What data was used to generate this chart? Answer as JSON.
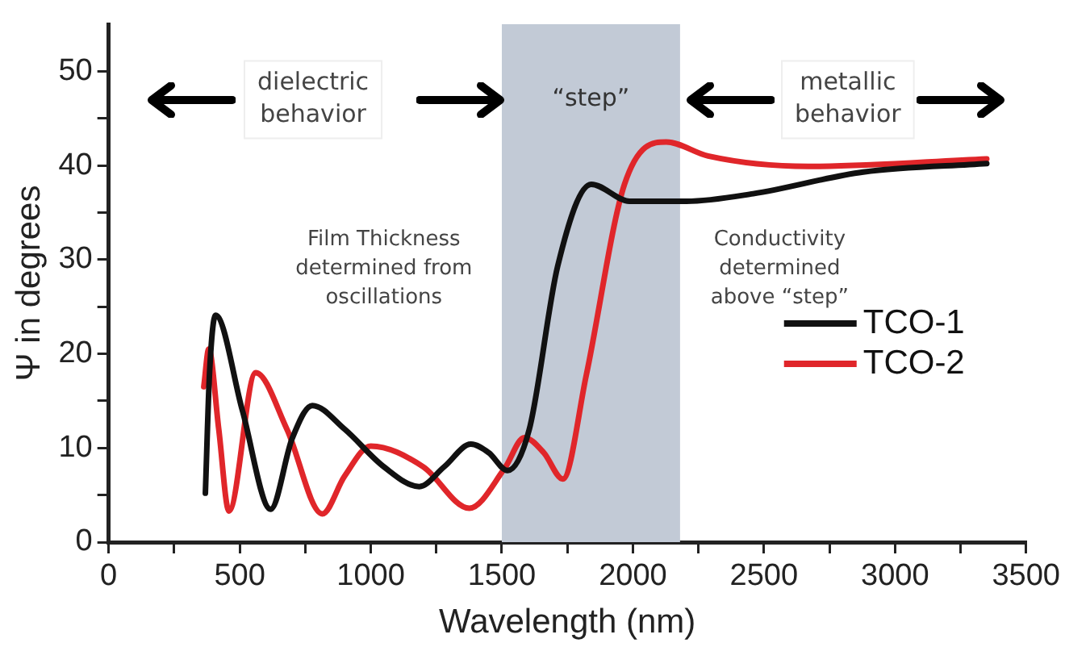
{
  "chart_data": {
    "type": "line",
    "xlabel": "Wavelength (nm)",
    "ylabel": "Ψ in degrees",
    "xlim": [
      0,
      3500
    ],
    "ylim": [
      0,
      55
    ],
    "xticks": [
      0,
      {
        "value": 250,
        "label": null
      },
      500,
      {
        "value": 750,
        "label": null
      },
      1000,
      {
        "value": 1250,
        "label": null
      },
      1500,
      {
        "value": 1750,
        "label": null
      },
      2000,
      {
        "value": 2250,
        "label": null
      },
      2500,
      {
        "value": 2750,
        "label": null
      },
      3000,
      {
        "value": 3250,
        "label": null
      },
      3500
    ],
    "yticks": [
      0,
      {
        "value": 5,
        "label": null
      },
      10,
      {
        "value": 15,
        "label": null
      },
      20,
      {
        "value": 25,
        "label": null
      },
      30,
      {
        "value": 35,
        "label": null
      },
      40,
      {
        "value": 45,
        "label": null
      },
      50
    ],
    "series": [
      {
        "name": "TCO-1",
        "color": "#111111",
        "x": [
          369,
          385,
          408,
          510,
          618,
          700,
          777,
          900,
          1050,
          1185,
          1280,
          1382,
          1450,
          1522,
          1605,
          1713,
          1841,
          1987,
          2204,
          2459,
          2879,
          3350
        ],
        "values": [
          5.2,
          18,
          24.1,
          14,
          3.5,
          11,
          14.5,
          12,
          8,
          5.9,
          8,
          10.4,
          9.5,
          7.6,
          12,
          29.3,
          38,
          36.2,
          36.2,
          37,
          39.3,
          40.2
        ]
      },
      {
        "name": "TCO-2",
        "color": "#e0262a",
        "x": [
          363,
          382,
          420,
          459,
          561,
          680,
          815,
          900,
          1000,
          1200,
          1376,
          1510,
          1586,
          1660,
          1733,
          1822,
          1968,
          2127,
          2287,
          2669,
          3350
        ],
        "values": [
          16.5,
          20.5,
          12,
          3.3,
          18,
          12,
          3.0,
          7,
          10.2,
          8,
          3.6,
          7.8,
          11.1,
          9.5,
          6.7,
          17.7,
          38,
          42.5,
          41,
          39.9,
          40.7
        ]
      }
    ],
    "bands": [
      {
        "axis": "x",
        "from": 1500,
        "to": 2180,
        "label": "“step”",
        "color": "#c2cad6"
      }
    ],
    "annotations": [
      "dielectric behavior",
      "metallic behavior",
      "Film Thickness determined from oscillations",
      "Conductivity determined above “step”"
    ],
    "legend": "right",
    "grid": false,
    "marker": "none",
    "line_style": "solid"
  }
}
